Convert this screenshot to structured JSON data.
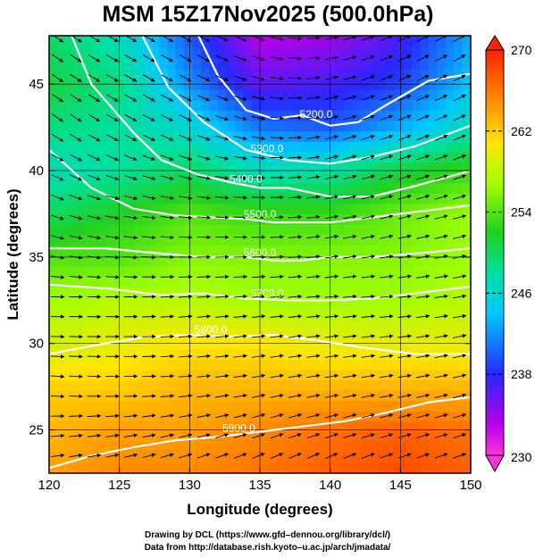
{
  "chart_data": {
    "type": "heatmap",
    "title": "MSM 15Z17Nov2025 (500.0hPa)",
    "xlabel": "Longitude (degrees)",
    "ylabel": "Latitude  (degrees)",
    "xlim": [
      120,
      150
    ],
    "ylim": [
      22.5,
      47.8
    ],
    "x_ticks": [
      120,
      125,
      130,
      135,
      140,
      145,
      150
    ],
    "y_ticks": [
      25,
      30,
      35,
      40,
      45
    ],
    "grid": true,
    "colorbar": {
      "range": [
        230,
        270
      ],
      "ticks": [
        230,
        238,
        246,
        254,
        262,
        270
      ],
      "unit": "K (temperature)"
    },
    "temperature_field": {
      "lon": [
        120,
        125,
        130,
        135,
        140,
        145,
        150
      ],
      "lat": [
        47.5,
        45,
        42.5,
        40,
        37.5,
        35,
        32.5,
        30,
        27.5,
        25,
        22.5
      ],
      "values": [
        [
          250,
          247,
          240,
          233,
          234,
          237,
          243
        ],
        [
          251,
          249,
          242,
          236,
          237,
          239,
          244
        ],
        [
          249,
          248,
          246,
          241,
          240,
          243,
          247
        ],
        [
          247,
          248,
          250,
          247,
          248,
          251,
          253
        ],
        [
          250,
          252,
          254,
          253,
          253,
          255,
          257
        ],
        [
          254,
          254,
          256,
          256,
          256,
          256,
          257
        ],
        [
          257,
          258,
          258,
          257,
          257,
          257,
          258
        ],
        [
          259,
          260,
          261,
          261,
          260,
          260,
          260
        ],
        [
          262,
          262,
          263,
          263,
          263,
          263,
          263
        ],
        [
          263,
          264,
          264,
          265,
          266,
          267,
          266
        ],
        [
          264,
          265,
          265,
          266,
          267,
          268,
          267
        ]
      ]
    },
    "height_contours": [
      {
        "label": "5200.0",
        "lon": [
          130.5,
          132,
          134,
          136,
          138,
          140,
          142,
          144,
          147,
          150
        ],
        "lat": [
          48,
          45.5,
          43.5,
          43,
          43.2,
          42.6,
          42.8,
          43.8,
          45.2,
          45.6
        ]
      },
      {
        "label": "5300.0",
        "lon": [
          126.5,
          128.5,
          131,
          134,
          137,
          140,
          143,
          146,
          150
        ],
        "lat": [
          48,
          44.8,
          42.8,
          41.2,
          40.6,
          40.4,
          40.8,
          41.4,
          42.6
        ]
      },
      {
        "label": "5400.0",
        "lon": [
          121.5,
          123,
          126,
          128,
          130.5,
          133,
          135,
          137,
          140,
          143,
          146,
          150
        ],
        "lat": [
          48,
          45,
          42.2,
          40.6,
          39.8,
          39.3,
          39,
          39,
          38.5,
          38.5,
          39.1,
          40
        ]
      },
      {
        "label": "5500.0",
        "lon": [
          120,
          123,
          126,
          129,
          131.5,
          134,
          136,
          138,
          140,
          143,
          146,
          150
        ],
        "lat": [
          41.2,
          39,
          37.8,
          37.4,
          37.3,
          37.2,
          37,
          37,
          37,
          37.3,
          37.6,
          38
        ]
      },
      {
        "label": "5600.0",
        "lon": [
          120,
          124,
          128,
          131,
          134,
          136,
          138,
          140,
          143,
          146,
          150
        ],
        "lat": [
          35.5,
          35.5,
          35.2,
          35,
          35,
          34.8,
          34.8,
          35,
          35,
          35.2,
          35.5
        ]
      },
      {
        "label": "5700.0",
        "lon": [
          120,
          124,
          128,
          131,
          134,
          137,
          140,
          143,
          146,
          150
        ],
        "lat": [
          33.4,
          33.2,
          32.8,
          32.9,
          32.6,
          32.5,
          32.5,
          32.6,
          32.9,
          33.3
        ]
      },
      {
        "label": "5800.0",
        "lon": [
          120,
          122,
          124,
          127,
          130,
          133,
          136,
          139,
          142,
          146,
          150
        ],
        "lat": [
          29.4,
          29.7,
          30,
          30.4,
          30.5,
          30.4,
          30.5,
          30.2,
          29.8,
          29.4,
          29.4
        ]
      },
      {
        "label": "5900.0",
        "lon": [
          120,
          123,
          126,
          129,
          132,
          135,
          138,
          141,
          144,
          147,
          150
        ],
        "lat": [
          22.8,
          23.5,
          24,
          24.4,
          24.6,
          24.9,
          25.2,
          25.5,
          26,
          26.6,
          26.9
        ]
      }
    ],
    "wind_field": {
      "description": "500 hPa wind vectors; westerly flow, northwesterly in north-west, southwesterly in south-east",
      "lon": [
        120,
        125,
        130,
        135,
        140,
        145,
        150
      ],
      "lat": [
        47.5,
        42.5,
        37.5,
        32.5,
        27.5,
        22.5
      ],
      "direction_deg": [
        [
          -35,
          -30,
          -30,
          -20,
          10,
          25,
          30
        ],
        [
          -35,
          -30,
          -25,
          -10,
          15,
          20,
          25
        ],
        [
          -20,
          -10,
          -5,
          0,
          10,
          15,
          15
        ],
        [
          0,
          0,
          5,
          5,
          5,
          5,
          10
        ],
        [
          -5,
          0,
          5,
          10,
          10,
          10,
          15
        ],
        [
          10,
          15,
          20,
          25,
          25,
          20,
          20
        ]
      ]
    }
  },
  "credits": {
    "line1": "Drawing by DCL (https://www.gfd–dennou.org/library/dcl/)",
    "line2": "Data from http://database.rish.kyoto–u.ac.jp/arch/jmadata/"
  }
}
